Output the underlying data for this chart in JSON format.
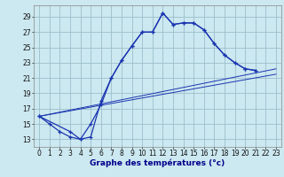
{
  "xlabel": "Graphe des températures (°c)",
  "bg_color": "#cce8f0",
  "line_color": "#1a35b0",
  "grid_color": "#9bbfcc",
  "xlim": [
    -0.5,
    23.5
  ],
  "ylim": [
    12.0,
    30.5
  ],
  "yticks": [
    13,
    15,
    17,
    19,
    21,
    23,
    25,
    27,
    29
  ],
  "xticks": [
    0,
    1,
    2,
    3,
    4,
    5,
    6,
    7,
    8,
    9,
    10,
    11,
    12,
    13,
    14,
    15,
    16,
    17,
    18,
    19,
    20,
    21,
    22,
    23
  ],
  "curve1": {
    "x": [
      0,
      1,
      2,
      3,
      4,
      5,
      6,
      7,
      8,
      9,
      10,
      11,
      12,
      13,
      14,
      15,
      16,
      17,
      18,
      19,
      20,
      21
    ],
    "y": [
      16,
      15,
      14,
      13.3,
      13,
      15,
      17.5,
      21,
      23.3,
      25.2,
      27,
      27,
      29.5,
      28,
      28.2,
      28.2,
      27.3,
      25.5,
      24,
      23,
      22.2,
      22
    ]
  },
  "curve2": {
    "x": [
      0,
      3,
      4,
      5,
      6,
      7,
      8,
      9,
      10,
      11,
      12,
      13,
      14,
      15,
      16,
      17,
      18,
      19,
      20,
      21
    ],
    "y": [
      16,
      14,
      13,
      13.3,
      18,
      21,
      23.3,
      25.2,
      27,
      27,
      29.5,
      28,
      28.2,
      28.2,
      27.3,
      25.5,
      24,
      23,
      22.2,
      22
    ]
  },
  "line1": {
    "x": [
      0,
      23
    ],
    "y": [
      16,
      21.5
    ]
  },
  "line2": {
    "x": [
      0,
      23
    ],
    "y": [
      16,
      22.2
    ]
  }
}
